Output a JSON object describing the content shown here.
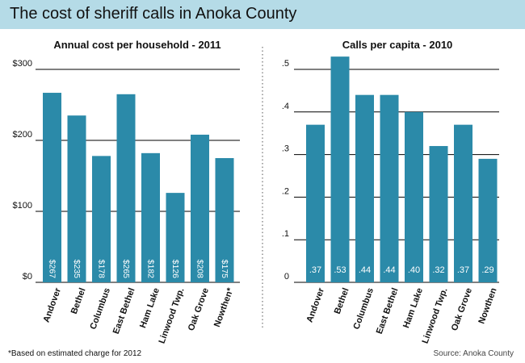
{
  "page": {
    "title": "The cost of sheriff calls in Anoka County"
  },
  "footnote": "*Based on estimated charge for 2012",
  "source": "Source: Anoka County",
  "colors": {
    "bar": "#2b8aa9",
    "grid": "#000000",
    "label_text": "#ffffff",
    "title_band": "#b5dbe7"
  },
  "chart_data": [
    {
      "type": "bar",
      "title": "Annual cost per household - 2011",
      "categories": [
        "Andover",
        "Bethel",
        "Columbus",
        "East Bethel",
        "Ham Lake",
        "Linwood Twp.",
        "Oak Grove",
        "Nowthen*"
      ],
      "values": [
        267,
        235,
        178,
        265,
        182,
        126,
        208,
        175
      ],
      "data_labels": [
        "$267",
        "$235",
        "$178",
        "$265",
        "$182",
        "$126",
        "$208",
        "$175"
      ],
      "yticks": [
        0,
        100,
        200,
        300
      ],
      "ytick_labels": [
        "$0",
        "$100",
        "$200",
        "$300"
      ],
      "ylim": [
        0,
        300
      ],
      "grid": true
    },
    {
      "type": "bar",
      "title": "Calls per capita - 2010",
      "categories": [
        "Andover",
        "Bethel",
        "Columbus",
        "East Bethel",
        "Ham Lake",
        "Linwood Twp.",
        "Oak Grove",
        "Nowthen"
      ],
      "values": [
        0.37,
        0.53,
        0.44,
        0.44,
        0.4,
        0.32,
        0.37,
        0.29
      ],
      "data_labels": [
        ".37",
        ".53",
        ".44",
        ".44",
        ".40",
        ".32",
        ".37",
        ".29"
      ],
      "yticks": [
        0,
        0.1,
        0.2,
        0.3,
        0.4,
        0.5
      ],
      "ytick_labels": [
        "0",
        ".1",
        ".2",
        ".3",
        ".4",
        ".5"
      ],
      "ylim": [
        0,
        0.5
      ],
      "grid": true
    }
  ]
}
